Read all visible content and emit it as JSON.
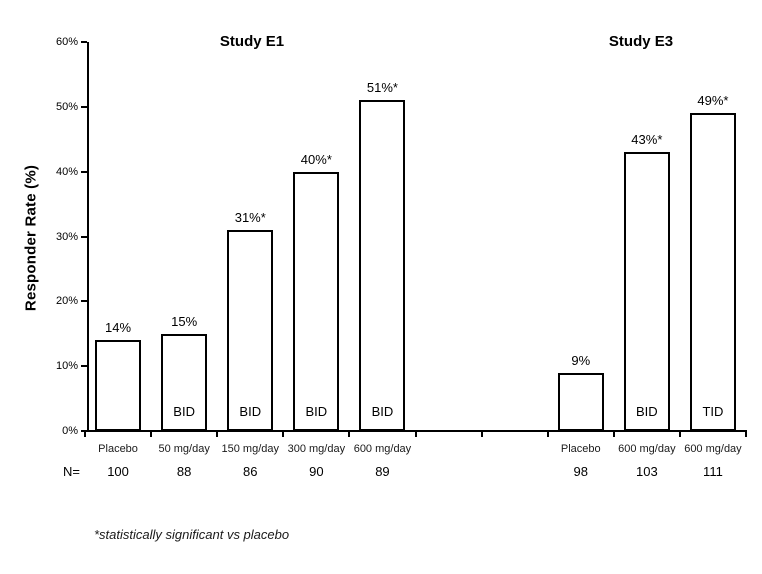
{
  "chart_data": {
    "type": "bar",
    "ylabel": "Responder Rate (%)",
    "ylim": [
      0,
      60
    ],
    "ytick_step": 10,
    "ytick_labels": [
      "0%",
      "10%",
      "20%",
      "30%",
      "40%",
      "50%",
      "60%"
    ],
    "total_slots": 10,
    "grid": false,
    "n_prefix": "N=",
    "footnote": "*statistically significant vs placebo",
    "bar_style": {
      "fill": "#ffffff",
      "border": "#000000"
    },
    "groups": [
      {
        "title": "Study E1",
        "bars": [
          {
            "category": "Placebo",
            "value": 14,
            "label": "14%",
            "dose_label": "",
            "n": "100",
            "slot": 0
          },
          {
            "category": "50 mg/day",
            "value": 15,
            "label": "15%",
            "dose_label": "BID",
            "n": "88",
            "slot": 1
          },
          {
            "category": "150 mg/day",
            "value": 31,
            "label": "31%*",
            "dose_label": "BID",
            "n": "86",
            "slot": 2
          },
          {
            "category": "300 mg/day",
            "value": 40,
            "label": "40%*",
            "dose_label": "BID",
            "n": "90",
            "slot": 3
          },
          {
            "category": "600 mg/day",
            "value": 51,
            "label": "51%*",
            "dose_label": "BID",
            "n": "89",
            "slot": 4
          }
        ]
      },
      {
        "title": "Study E3",
        "bars": [
          {
            "category": "Placebo",
            "value": 9,
            "label": "9%",
            "dose_label": "",
            "n": "98",
            "slot": 7
          },
          {
            "category": "600 mg/day",
            "value": 43,
            "label": "43%*",
            "dose_label": "BID",
            "n": "103",
            "slot": 8
          },
          {
            "category": "600 mg/day",
            "value": 49,
            "label": "49%*",
            "dose_label": "TID",
            "n": "111",
            "slot": 9
          }
        ]
      }
    ]
  }
}
